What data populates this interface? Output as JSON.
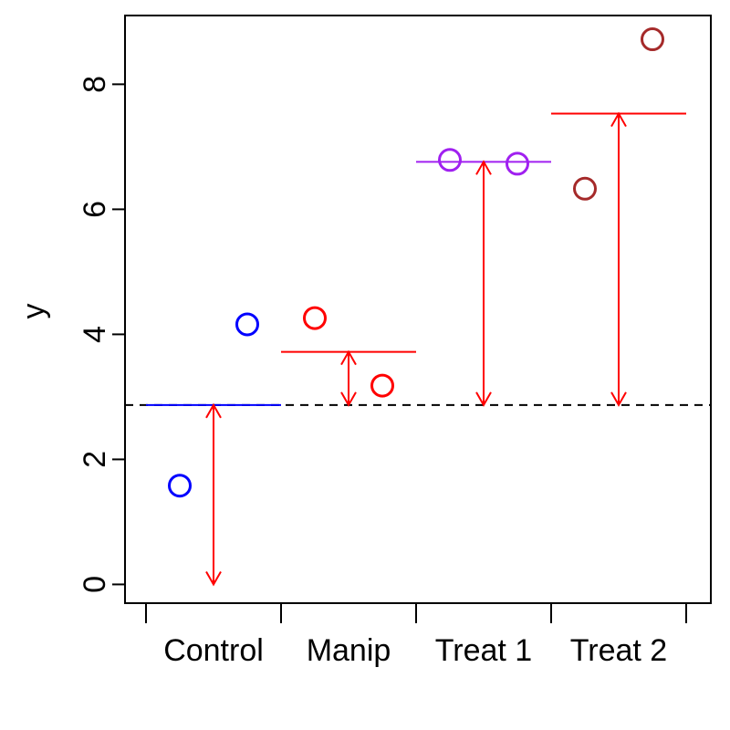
{
  "chart_data": {
    "type": "scatter",
    "title": "",
    "xlabel": "",
    "ylabel": "y",
    "ylim": [
      -0.3,
      9.1
    ],
    "yticks": [
      0,
      2,
      4,
      6,
      8
    ],
    "categories": [
      "Control",
      "Manip",
      "Treat 1",
      "Treat 2"
    ],
    "grid": false,
    "baseline": 2.87,
    "groups": [
      {
        "category": "Control",
        "mean": 2.87,
        "points": [
          1.58,
          4.16
        ],
        "color": "#0000ff",
        "meanColor": "#0000ff",
        "arrowFrom": 2.87,
        "arrowTo": 0
      },
      {
        "category": "Manip",
        "mean": 3.72,
        "points": [
          4.26,
          3.18
        ],
        "color": "#ff0000",
        "meanColor": "#ff0000",
        "arrowFrom": 2.87,
        "arrowTo": 3.72
      },
      {
        "category": "Treat 1",
        "mean": 6.76,
        "points": [
          6.79,
          6.73
        ],
        "color": "#a020f0",
        "meanColor": "#a020f0",
        "arrowFrom": 2.87,
        "arrowTo": 6.76
      },
      {
        "category": "Treat 2",
        "mean": 7.53,
        "points": [
          6.33,
          8.72
        ],
        "color": "#a52a2a",
        "meanColor": "#ff0000",
        "arrowFrom": 2.87,
        "arrowTo": 7.53
      }
    ],
    "arrowColor": "#ff0000",
    "baselineColor": "#000000"
  }
}
